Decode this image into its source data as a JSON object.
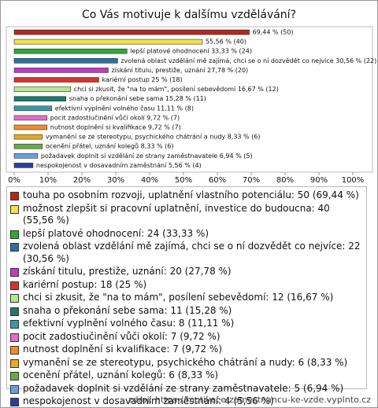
{
  "chart_data": {
    "type": "bar",
    "orientation": "horizontal",
    "title": "Co Vás motivuje k dalšímu vzdělávání?",
    "values": [
      69.44,
      55.56,
      33.33,
      30.56,
      27.78,
      25,
      16.67,
      15.28,
      11.11,
      9.72,
      9.72,
      8.33,
      8.33,
      6.94,
      5.56
    ],
    "value_labels": [
      "69,44 % (50)",
      "55,56 % (40)",
      "lepší platové ohodnocení 33,33 % (24)",
      "zvolená oblast vzdělání mě zajímá, chci se o ní dozvědět co nejvíce 30,56 % (22)",
      "získání titulu, prestiže, uznání 27,78 % (20)",
      "kariérní postup 25 % (18)",
      "chci si zkusit, že \"na to mám\", posílení sebevědomí 16,67 % (12)",
      "snaha o překonání sebe sama 15,28 % (11)",
      "efektivní vyplnění volného času 11,11 % (8)",
      "pocit zadostiučinění vůči okolí 9,72 % (7)",
      "nutnost doplnění si kvalifikace 9,72 % (7)",
      "vymanění se ze stereotypu, psychického chátrání a nudy 8,33 % (6)",
      "ocenění přátel, uznání kolegů 8,33 % (6)",
      "požadavek doplnit si vzdělání ze strany zaměstnavatele 6,94 % (5)",
      "nespokojenost v dosavadním zaměstnání 5,56 % (4)"
    ],
    "legend": [
      "touha po osobním rozvoji, uplatnění vlastního potenciálu: 50 (69,44 %)",
      "možnost zlepšit si pracovní uplatnění, investice do budoucna: 40 (55,56 %)",
      "lepší platové ohodnocení: 24 (33,33 %)",
      "zvolená oblast vzdělání mě zajímá, chci se o ní dozvědět co nejvíce: 22 (30,56 %)",
      "získání titulu, prestiže, uznání: 20 (27,78 %)",
      "kariérní postup: 18 (25 %)",
      "chci si zkusit, že \"na to mám\", posílení sebevědomí: 12 (16,67 %)",
      "snaha o překonání sebe sama: 11 (15,28 %)",
      "efektivní vyplnění volného času: 8 (11,11 %)",
      "pocit zadostiučinění vůči okolí: 7 (9,72 %)",
      "nutnost doplnění si kvalifikace: 7 (9,72 %)",
      "vymanění se ze stereotypu, psychického chátrání a nudy: 6 (8,33 %)",
      "ocenění přátel, uznání kolegů: 6 (8,33 %)",
      "požadavek doplnit si vzdělání ze strany zaměstnavatele: 5 (6,94 %)",
      "nespokojenost v dosavadním zaměstnání: 4 (5,56 %)"
    ],
    "colors": [
      "#b3261e",
      "#f2e24a",
      "#2fa83a",
      "#2a6fa8",
      "#c03cc0",
      "#d8322a",
      "#b4e88a",
      "#1f7a68",
      "#3a9aa0",
      "#e070c8",
      "#f08a2a",
      "#e8a820",
      "#6aa84f",
      "#6a9fe0",
      "#2a3f9a"
    ],
    "xlim": [
      0,
      100
    ],
    "xticks": [
      {
        "value": 0,
        "label": "0%"
      },
      {
        "value": 10,
        "label": "10%"
      },
      {
        "value": 20,
        "label": "20%"
      },
      {
        "value": 30,
        "label": "30%"
      },
      {
        "value": 40,
        "label": "40%"
      },
      {
        "value": 50,
        "label": "50%"
      },
      {
        "value": 60,
        "label": "60%"
      },
      {
        "value": 70,
        "label": "70%"
      },
      {
        "value": 80,
        "label": "80%"
      },
      {
        "value": 90,
        "label": "90%"
      },
      {
        "value": 100,
        "label": "100%"
      }
    ],
    "source": "zdroj: https://motivace-zamestnancu-ke-vzde.vyplnto.cz"
  }
}
